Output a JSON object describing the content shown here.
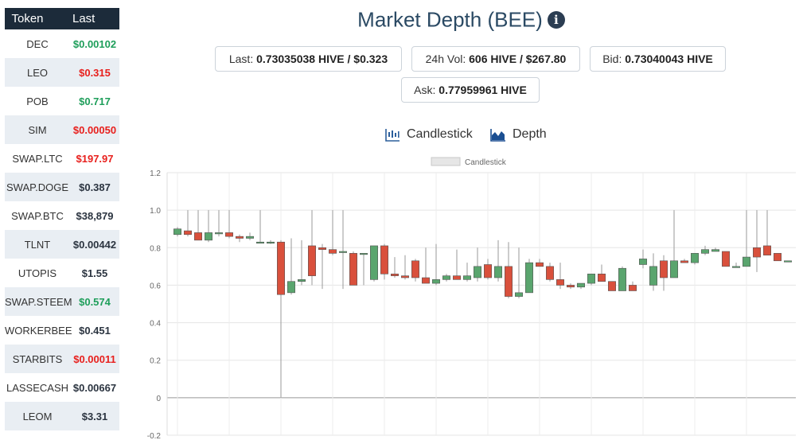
{
  "sidebar": {
    "header": {
      "token": "Token",
      "last": "Last"
    },
    "rows": [
      {
        "token": "DEC",
        "last": "$0.00102",
        "color": "#1e9e5a"
      },
      {
        "token": "LEO",
        "last": "$0.315",
        "color": "#e8201d"
      },
      {
        "token": "POB",
        "last": "$0.717",
        "color": "#1e9e5a"
      },
      {
        "token": "SIM",
        "last": "$0.00050",
        "color": "#e8201d"
      },
      {
        "token": "SWAP.LTC",
        "last": "$197.97",
        "color": "#e8201d"
      },
      {
        "token": "SWAP.DOGE",
        "last": "$0.387",
        "color": "#2b3440"
      },
      {
        "token": "SWAP.BTC",
        "last": "$38,879",
        "color": "#2b3440"
      },
      {
        "token": "TLNT",
        "last": "$0.00442",
        "color": "#2b3440"
      },
      {
        "token": "UTOPIS",
        "last": "$1.55",
        "color": "#2b3440"
      },
      {
        "token": "SWAP.STEEM",
        "last": "$0.574",
        "color": "#1e9e5a"
      },
      {
        "token": "WORKERBEE",
        "last": "$0.451",
        "color": "#2b3440"
      },
      {
        "token": "STARBITS",
        "last": "$0.00011",
        "color": "#e8201d"
      },
      {
        "token": "LASSECASH",
        "last": "$0.00667",
        "color": "#2b3440"
      },
      {
        "token": "LEOM",
        "last": "$3.31",
        "color": "#2b3440"
      }
    ]
  },
  "header": {
    "title": "Market Depth (BEE)",
    "info_icon": "info-circle-icon"
  },
  "stats": {
    "last": {
      "label": "Last:",
      "value": "0.73035038 HIVE / $0.323"
    },
    "vol": {
      "label": "24h Vol:",
      "value": "606 HIVE / $267.80"
    },
    "bid": {
      "label": "Bid:",
      "value": "0.73040043 HIVE"
    },
    "ask": {
      "label": "Ask:",
      "value": "0.77959961 HIVE"
    }
  },
  "tabs": {
    "candlestick": {
      "label": "Candlestick",
      "icon": "candlestick-chart-icon"
    },
    "depth": {
      "label": "Depth",
      "icon": "area-chart-icon"
    }
  },
  "chart_data": {
    "type": "candlestick",
    "legend": "Candlestick",
    "legend_position": "top-center",
    "grid": true,
    "ylim": [
      -0.2,
      1.2
    ],
    "yticks": [
      "1.2",
      "1.0",
      "0.8",
      "0.6",
      "0.4",
      "0.2",
      "0",
      "-0.2"
    ],
    "colors": {
      "up": "#5aa56e",
      "down": "#d9503c",
      "wick": "#999999"
    },
    "candles": [
      {
        "o": 0.87,
        "h": 0.91,
        "l": 0.86,
        "c": 0.9
      },
      {
        "o": 0.89,
        "h": 1.0,
        "l": 0.86,
        "c": 0.87
      },
      {
        "o": 0.88,
        "h": 1.0,
        "l": 0.84,
        "c": 0.84
      },
      {
        "o": 0.84,
        "h": 1.0,
        "l": 0.83,
        "c": 0.88
      },
      {
        "o": 0.88,
        "h": 1.0,
        "l": 0.86,
        "c": 0.88
      },
      {
        "o": 0.88,
        "h": 1.0,
        "l": 0.85,
        "c": 0.86
      },
      {
        "o": 0.86,
        "h": 0.87,
        "l": 0.83,
        "c": 0.85
      },
      {
        "o": 0.85,
        "h": 0.88,
        "l": 0.84,
        "c": 0.86
      },
      {
        "o": 0.83,
        "h": 1.0,
        "l": 0.83,
        "c": 0.83
      },
      {
        "o": 0.83,
        "h": 0.84,
        "l": 0.82,
        "c": 0.83
      },
      {
        "o": 0.83,
        "h": 0.84,
        "l": 0.0,
        "c": 0.55
      },
      {
        "o": 0.56,
        "h": 0.85,
        "l": 0.55,
        "c": 0.62
      },
      {
        "o": 0.62,
        "h": 0.84,
        "l": 0.6,
        "c": 0.63
      },
      {
        "o": 0.81,
        "h": 1.0,
        "l": 0.6,
        "c": 0.65
      },
      {
        "o": 0.8,
        "h": 0.82,
        "l": 0.58,
        "c": 0.79
      },
      {
        "o": 0.79,
        "h": 1.0,
        "l": 0.76,
        "c": 0.77
      },
      {
        "o": 0.78,
        "h": 1.0,
        "l": 0.58,
        "c": 0.78
      },
      {
        "o": 0.77,
        "h": 0.78,
        "l": 0.6,
        "c": 0.6
      },
      {
        "o": 0.77,
        "h": 0.77,
        "l": 0.6,
        "c": 0.77
      },
      {
        "o": 0.63,
        "h": 0.81,
        "l": 0.62,
        "c": 0.81
      },
      {
        "o": 0.81,
        "h": 0.82,
        "l": 0.63,
        "c": 0.66
      },
      {
        "o": 0.66,
        "h": 0.75,
        "l": 0.64,
        "c": 0.65
      },
      {
        "o": 0.65,
        "h": 0.76,
        "l": 0.63,
        "c": 0.64
      },
      {
        "o": 0.73,
        "h": 0.74,
        "l": 0.62,
        "c": 0.64
      },
      {
        "o": 0.64,
        "h": 0.8,
        "l": 0.62,
        "c": 0.61
      },
      {
        "o": 0.61,
        "h": 0.82,
        "l": 0.6,
        "c": 0.63
      },
      {
        "o": 0.63,
        "h": 0.66,
        "l": 0.62,
        "c": 0.65
      },
      {
        "o": 0.65,
        "h": 0.79,
        "l": 0.63,
        "c": 0.63
      },
      {
        "o": 0.63,
        "h": 0.72,
        "l": 0.62,
        "c": 0.65
      },
      {
        "o": 0.64,
        "h": 0.8,
        "l": 0.62,
        "c": 0.7
      },
      {
        "o": 0.71,
        "h": 0.74,
        "l": 0.63,
        "c": 0.64
      },
      {
        "o": 0.64,
        "h": 0.84,
        "l": 0.62,
        "c": 0.7
      },
      {
        "o": 0.7,
        "h": 0.83,
        "l": 0.53,
        "c": 0.54
      },
      {
        "o": 0.54,
        "h": 0.8,
        "l": 0.53,
        "c": 0.56
      },
      {
        "o": 0.56,
        "h": 0.74,
        "l": 0.56,
        "c": 0.72
      },
      {
        "o": 0.72,
        "h": 0.74,
        "l": 0.71,
        "c": 0.7
      },
      {
        "o": 0.7,
        "h": 0.72,
        "l": 0.62,
        "c": 0.63
      },
      {
        "o": 0.63,
        "h": 0.72,
        "l": 0.58,
        "c": 0.6
      },
      {
        "o": 0.6,
        "h": 0.61,
        "l": 0.58,
        "c": 0.59
      },
      {
        "o": 0.59,
        "h": 0.61,
        "l": 0.58,
        "c": 0.61
      },
      {
        "o": 0.61,
        "h": 0.66,
        "l": 0.6,
        "c": 0.66
      },
      {
        "o": 0.66,
        "h": 0.71,
        "l": 0.62,
        "c": 0.62
      },
      {
        "o": 0.62,
        "h": 0.62,
        "l": 0.57,
        "c": 0.57
      },
      {
        "o": 0.57,
        "h": 0.7,
        "l": 0.57,
        "c": 0.69
      },
      {
        "o": 0.6,
        "h": 0.62,
        "l": 0.57,
        "c": 0.57
      },
      {
        "o": 0.71,
        "h": 0.79,
        "l": 0.69,
        "c": 0.74
      },
      {
        "o": 0.6,
        "h": 0.77,
        "l": 0.57,
        "c": 0.7
      },
      {
        "o": 0.73,
        "h": 0.76,
        "l": 0.57,
        "c": 0.64
      },
      {
        "o": 0.64,
        "h": 1.0,
        "l": 0.64,
        "c": 0.73
      },
      {
        "o": 0.73,
        "h": 0.74,
        "l": 0.72,
        "c": 0.72
      },
      {
        "o": 0.72,
        "h": 0.77,
        "l": 0.71,
        "c": 0.77
      },
      {
        "o": 0.77,
        "h": 0.81,
        "l": 0.76,
        "c": 0.79
      },
      {
        "o": 0.78,
        "h": 0.8,
        "l": 0.78,
        "c": 0.79
      },
      {
        "o": 0.78,
        "h": 0.78,
        "l": 0.7,
        "c": 0.7
      },
      {
        "o": 0.7,
        "h": 0.72,
        "l": 0.7,
        "c": 0.7
      },
      {
        "o": 0.7,
        "h": 1.0,
        "l": 0.7,
        "c": 0.75
      },
      {
        "o": 0.8,
        "h": 1.0,
        "l": 0.67,
        "c": 0.75
      },
      {
        "o": 0.81,
        "h": 1.0,
        "l": 0.76,
        "c": 0.76
      },
      {
        "o": 0.77,
        "h": 0.77,
        "l": 0.73,
        "c": 0.73
      },
      {
        "o": 0.73,
        "h": 0.73,
        "l": 0.73,
        "c": 0.73
      }
    ]
  }
}
